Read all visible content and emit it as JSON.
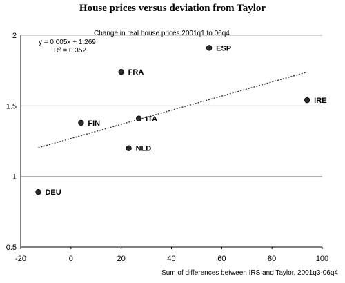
{
  "chart_data": {
    "type": "scatter",
    "title": "House prices versus deviation from Taylor",
    "ylabel": "Change in real house prices 2001q1 to 06q4",
    "xlabel": "Sum of differences between IRS and Taylor, 2001q3-06q4",
    "xlim": [
      -20,
      100
    ],
    "ylim": [
      0.5,
      2
    ],
    "xticks": [
      -20,
      0,
      20,
      40,
      60,
      80,
      100
    ],
    "yticks": [
      0.5,
      1,
      1.5,
      2
    ],
    "ytick_labels": [
      "0.5",
      "1",
      "1.5",
      "2"
    ],
    "grid": "horizontal",
    "points": [
      {
        "label": "ESP",
        "x": 55,
        "y": 1.91
      },
      {
        "label": "FRA",
        "x": 20,
        "y": 1.74
      },
      {
        "label": "IRE",
        "x": 94,
        "y": 1.54
      },
      {
        "label": "ITA",
        "x": 27,
        "y": 1.41
      },
      {
        "label": "FIN",
        "x": 4,
        "y": 1.38
      },
      {
        "label": "NLD",
        "x": 23,
        "y": 1.2
      },
      {
        "label": "DEU",
        "x": -13,
        "y": 0.89
      }
    ],
    "trendline": {
      "equation": "y = 0.005x + 1.269",
      "r_squared": "R² = 0.352",
      "slope": 0.005,
      "intercept": 1.269,
      "x_range": [
        -13,
        94
      ],
      "style": "dashed"
    }
  }
}
